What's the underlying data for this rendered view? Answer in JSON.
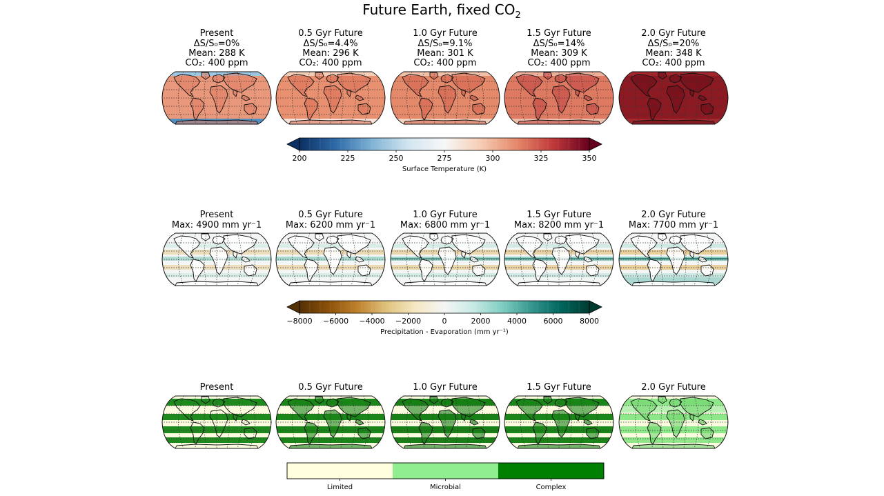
{
  "title_main": "Future Earth, fixed CO",
  "title_sub": "2",
  "rows": [
    {
      "panels": [
        {
          "lines": [
            "Present",
            "ΔS/S₀=0%",
            "Mean: 288 K",
            "CO₂: 400 ppm"
          ],
          "fill": "#e9987c",
          "north_cap": "#9cc6e2",
          "south_cap": "#4f8fc2",
          "land": "#e07c62"
        },
        {
          "lines": [
            "0.5 Gyr Future",
            "ΔS/S₀=4.4%",
            "Mean: 296 K",
            "CO₂: 400 ppm"
          ],
          "fill": "#e8906f",
          "north_cap": "#f2cdb8",
          "south_cap": "#f6e2d6",
          "land": "#db6f55"
        },
        {
          "lines": [
            "1.0 Gyr Future",
            "ΔS/S₀=9.1%",
            "Mean: 301 K",
            "CO₂: 400 ppm"
          ],
          "fill": "#e5896b",
          "north_cap": "#efc0a8",
          "south_cap": "#f3d3c2",
          "land": "#d2604b"
        },
        {
          "lines": [
            "1.5 Gyr Future",
            "ΔS/S₀=14%",
            "Mean: 309 K",
            "CO₂: 400 ppm"
          ],
          "fill": "#de7a61",
          "north_cap": "#ebb09a",
          "south_cap": "#eec0ab",
          "land": "#c24343"
        },
        {
          "lines": [
            "2.0 Gyr Future",
            "ΔS/S₀=20%",
            "Mean: 348 K",
            "CO₂: 400 ppm"
          ],
          "fill": "#8c1a22",
          "north_cap": "#a0262c",
          "south_cap": "#a52a2f",
          "land": "#6e0d18"
        }
      ],
      "colorbar": {
        "label": "Surface Temperature (K)",
        "ticks": [
          "200",
          "225",
          "250",
          "275",
          "300",
          "325",
          "350"
        ],
        "stops": [
          "#0b2f62",
          "#2f6aa8",
          "#7fb3d5",
          "#d2e5f0",
          "#f7f7f7",
          "#f6cdb4",
          "#e5876a",
          "#c0393a",
          "#67001f"
        ]
      }
    },
    {
      "panels": [
        {
          "lines": [
            "Present",
            "Max: 4900 mm yr⁻1"
          ]
        },
        {
          "lines": [
            "0.5 Gyr Future",
            "Max: 6200 mm yr⁻1"
          ]
        },
        {
          "lines": [
            "1.0 Gyr Future",
            "Max: 6800 mm yr⁻1"
          ]
        },
        {
          "lines": [
            "1.5 Gyr Future",
            "Max: 8200 mm yr⁻1"
          ]
        },
        {
          "lines": [
            "2.0 Gyr Future",
            "Max: 7700 mm yr⁻1"
          ]
        }
      ],
      "colorbar": {
        "label": "Precipitation - Evaporation (mm yr⁻¹)",
        "ticks": [
          "−8000",
          "−6000",
          "−4000",
          "−2000",
          "0",
          "2000",
          "4000",
          "6000",
          "8000"
        ],
        "stops": [
          "#543005",
          "#8c510a",
          "#bf812d",
          "#dfc27d",
          "#f6e8c3",
          "#f5f5f5",
          "#c7eae5",
          "#80cdc1",
          "#35978f",
          "#01665e",
          "#003c30"
        ]
      }
    },
    {
      "panels": [
        {
          "lines": [
            "Present"
          ],
          "green": "#1e8a1e",
          "light": "#fbfbe0"
        },
        {
          "lines": [
            "0.5 Gyr Future"
          ],
          "green": "#1a8518",
          "light": "#fbfbe0"
        },
        {
          "lines": [
            "1.0 Gyr Future"
          ],
          "green": "#188016",
          "light": "#fbfbe0"
        },
        {
          "lines": [
            "1.5 Gyr Future"
          ],
          "green": "#1a8518",
          "light": "#fbfbe0"
        },
        {
          "lines": [
            "2.0 Gyr Future"
          ],
          "green": "#8ee88a",
          "light": "#fbfbe0"
        }
      ],
      "legend": [
        {
          "label": "Limited",
          "color": "#ffffe0"
        },
        {
          "label": "Microbial",
          "color": "#90ee90"
        },
        {
          "label": "Complex",
          "color": "#008000"
        }
      ]
    }
  ]
}
